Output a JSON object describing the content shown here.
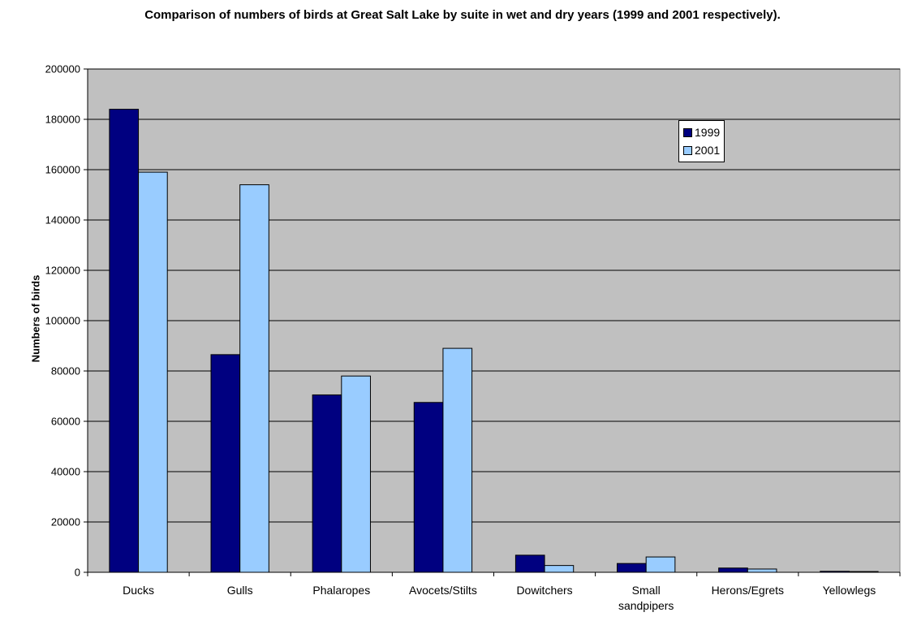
{
  "chart_data": {
    "type": "bar",
    "title": "Comparison of numbers of birds at Great Salt Lake by suite in wet and dry years (1999 and 2001 respectively).",
    "ylabel": "Numbers of birds",
    "xlabel": "",
    "categories": [
      [
        "Ducks"
      ],
      [
        "Gulls"
      ],
      [
        "Phalaropes"
      ],
      [
        "Avocets/Stilts"
      ],
      [
        "Dowitchers"
      ],
      [
        "Small",
        "sandpipers"
      ],
      [
        "Herons/Egrets"
      ],
      [
        "Yellowlegs"
      ]
    ],
    "series": [
      {
        "name": "1999",
        "color": "#000080",
        "values": [
          184000,
          86500,
          70500,
          67500,
          6800,
          3500,
          1700,
          400
        ]
      },
      {
        "name": "2001",
        "color": "#99CCFF",
        "values": [
          159000,
          154000,
          78000,
          89000,
          2700,
          6100,
          1300,
          300
        ]
      }
    ],
    "ylim": [
      0,
      200000
    ],
    "yticks": [
      0,
      20000,
      40000,
      60000,
      80000,
      100000,
      120000,
      140000,
      160000,
      180000,
      200000
    ],
    "grid": true,
    "plot_background": "#C0C0C0",
    "legend_position": "top-right"
  }
}
